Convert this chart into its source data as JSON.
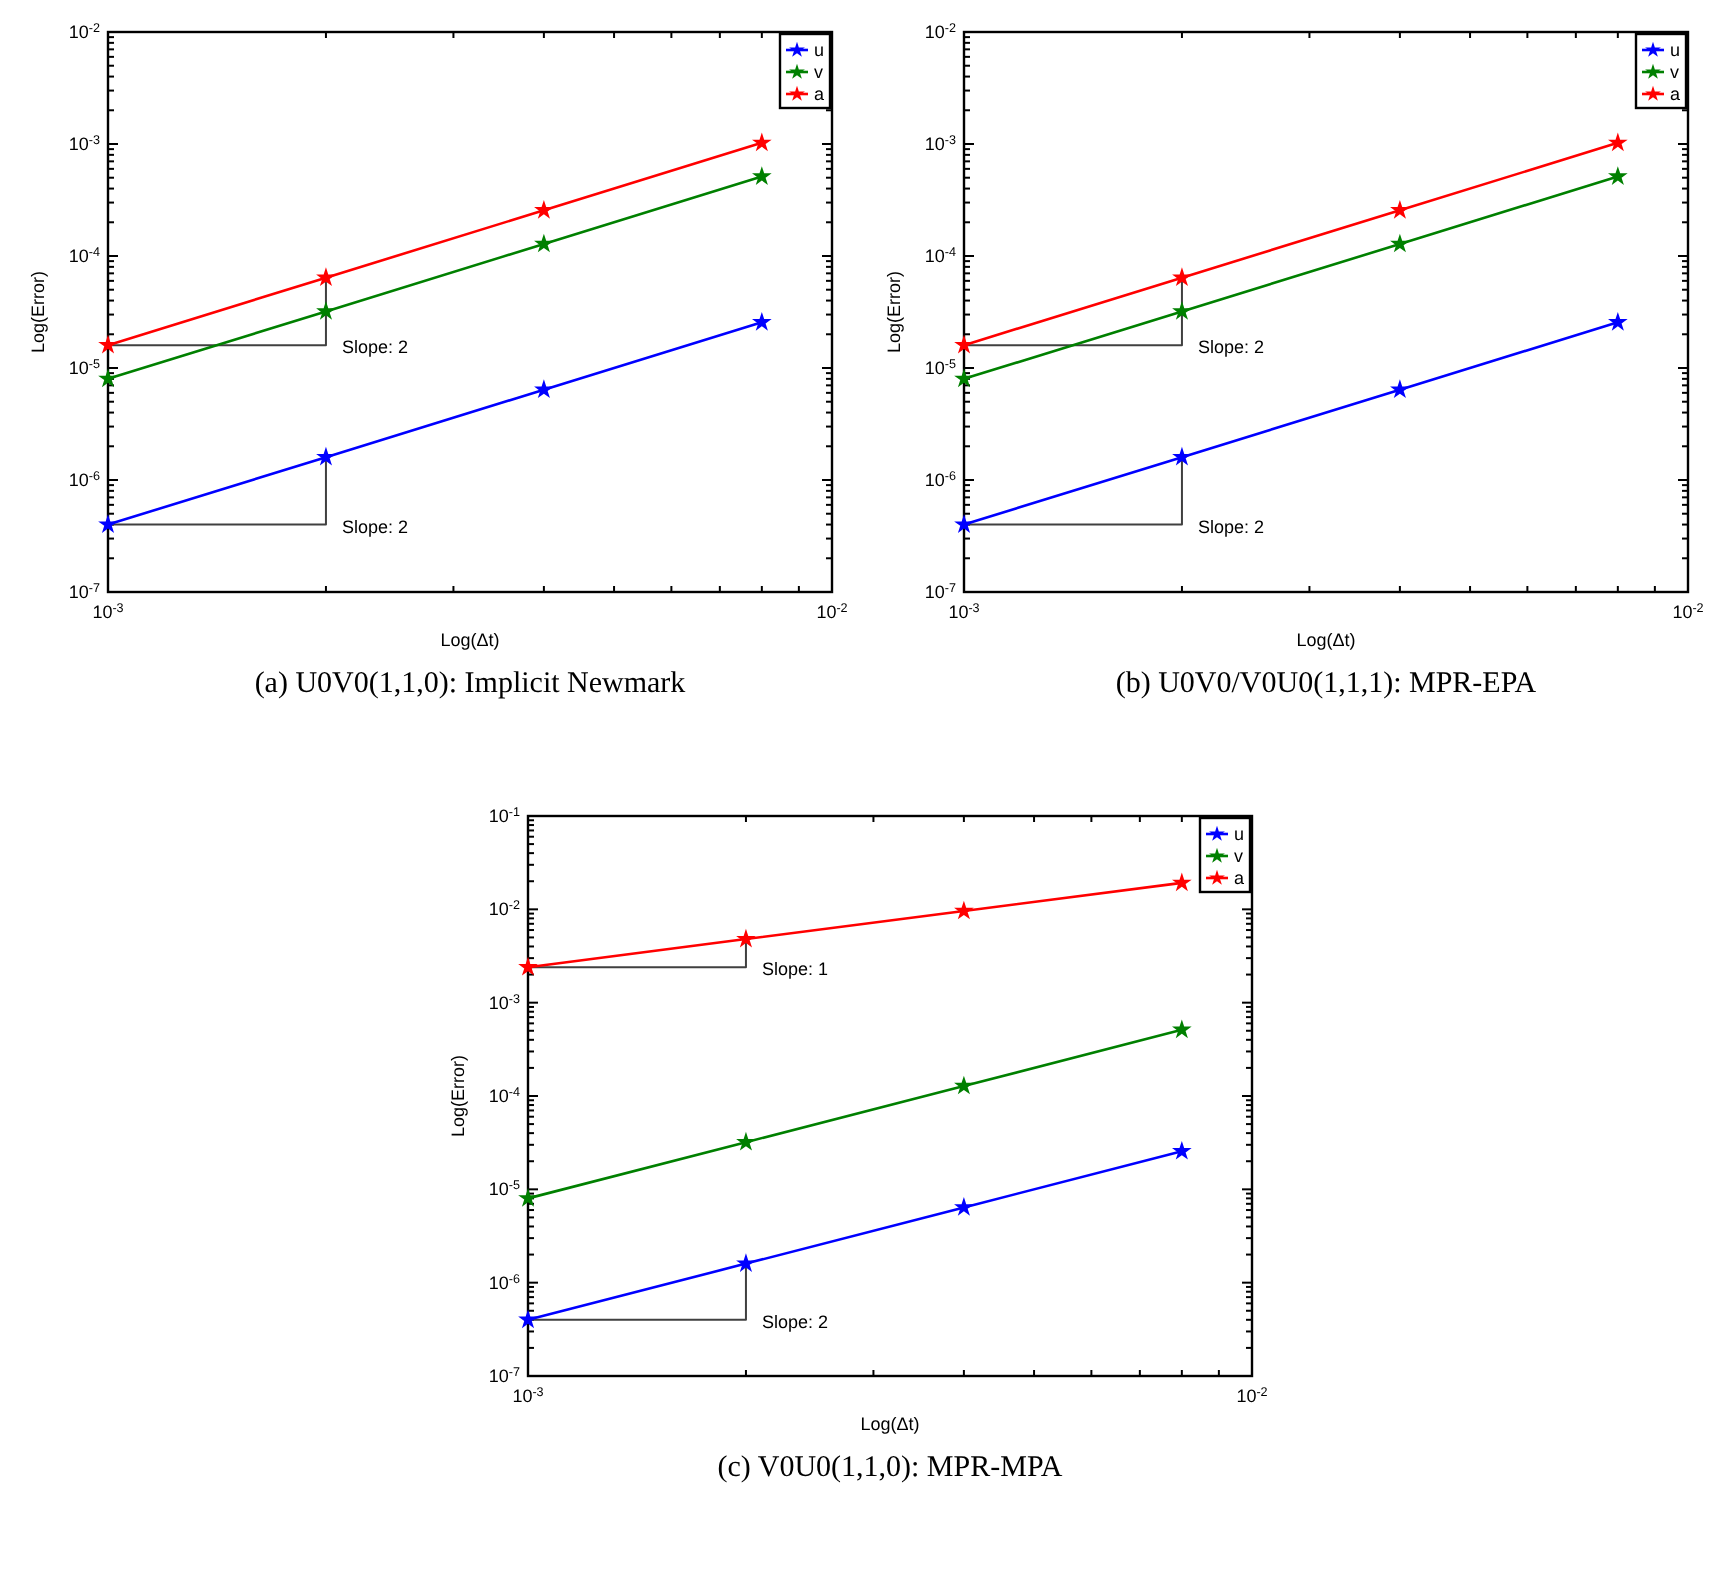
{
  "chart_data": [
    {
      "type": "line",
      "xlabel": "Log(Δt)",
      "ylabel": "Log(Error)",
      "log": "xy",
      "marker": "star",
      "legend": "top right",
      "x": [
        0.001,
        0.002,
        0.004,
        0.008
      ],
      "series": [
        {
          "name": "u",
          "color": "#0000ff",
          "values": [
            4e-07,
            1.6e-06,
            6.4e-06,
            2.56e-05
          ]
        },
        {
          "name": "v",
          "color": "#008000",
          "values": [
            8e-06,
            3.2e-05,
            0.000128,
            0.000512
          ]
        },
        {
          "name": "a",
          "color": "#ff0000",
          "values": [
            1.6e-05,
            6.4e-05,
            0.000256,
            0.001024
          ]
        },
        {
          "type": "step",
          "color": "#404040",
          "values": [
            1.6e-05,
            6.4e-05,
            null,
            null
          ],
          "marker": "none"
        },
        {
          "type": "step",
          "color": "#404040",
          "values": [
            4e-07,
            1.6e-06,
            null,
            null
          ],
          "marker": "none"
        }
      ],
      "xlim": [
        0.001,
        0.01
      ],
      "xticks": [
        {
          "value": 0.001,
          "label": "10$^{-3}$"
        },
        {
          "value": 0.002,
          "label": null
        },
        {
          "value": 0.003,
          "label": null
        },
        {
          "value": 0.004,
          "label": null
        },
        {
          "value": 0.005,
          "label": null
        },
        {
          "value": 0.006,
          "label": null
        },
        {
          "value": 0.007,
          "label": null
        },
        {
          "value": 0.008,
          "label": null
        },
        {
          "value": 0.009,
          "label": null
        },
        {
          "value": 0.01,
          "label": "10$^{-2}$"
        }
      ],
      "ylim": [
        1e-07,
        0.01
      ],
      "yticks": [
        {
          "value": 1e-07,
          "label": "10$^{-7}$"
        },
        {
          "value": 2e-07,
          "label": null
        },
        {
          "value": 3e-07,
          "label": null
        },
        {
          "value": 4e-07,
          "label": null
        },
        {
          "value": 5e-07,
          "label": null
        },
        {
          "value": 6e-07,
          "label": null
        },
        {
          "value": 7e-07,
          "label": null
        },
        {
          "value": 8e-07,
          "label": null
        },
        {
          "value": 9e-07,
          "label": null
        },
        {
          "value": 1e-06,
          "label": "10$^{-6}$"
        },
        {
          "value": 2e-06,
          "label": null
        },
        {
          "value": 3e-06,
          "label": null
        },
        {
          "value": 4e-06,
          "label": null
        },
        {
          "value": 5e-06,
          "label": null
        },
        {
          "value": 6e-06,
          "label": null
        },
        {
          "value": 7e-06,
          "label": null
        },
        {
          "value": 8e-06,
          "label": null
        },
        {
          "value": 9e-06,
          "label": null
        },
        {
          "value": 1e-05,
          "label": "10$^{-5}$"
        },
        {
          "value": 2e-05,
          "label": null
        },
        {
          "value": 3e-05,
          "label": null
        },
        {
          "value": 4e-05,
          "label": null
        },
        {
          "value": 5e-05,
          "label": null
        },
        {
          "value": 6e-05,
          "label": null
        },
        {
          "value": 7e-05,
          "label": null
        },
        {
          "value": 8e-05,
          "label": null
        },
        {
          "value": 9e-05,
          "label": null
        },
        {
          "value": 0.0001,
          "label": "10$^{-4}$"
        },
        {
          "value": 0.0002,
          "label": null
        },
        {
          "value": 0.0003,
          "label": null
        },
        {
          "value": 0.0004,
          "label": null
        },
        {
          "value": 0.0005,
          "label": null
        },
        {
          "value": 0.0006,
          "label": null
        },
        {
          "value": 0.0007,
          "label": null
        },
        {
          "value": 0.0008,
          "label": null
        },
        {
          "value": 0.0009,
          "label": null
        },
        {
          "value": 0.001,
          "label": "10$^{-3}$"
        },
        {
          "value": 0.002,
          "label": null
        },
        {
          "value": 0.003,
          "label": null
        },
        {
          "value": 0.004,
          "label": null
        },
        {
          "value": 0.005,
          "label": null
        },
        {
          "value": 0.006,
          "label": null
        },
        {
          "value": 0.007,
          "label": null
        },
        {
          "value": 0.008,
          "label": null
        },
        {
          "value": 0.009,
          "label": null
        },
        {
          "value": 0.01,
          "label": "10$^{-2}$"
        }
      ],
      "annotations": [
        "Slope: 2",
        "Slope: 2",
        "(a) U0V0(1,1,0): Implicit Newmark"
      ]
    },
    {
      "type": "line",
      "xlabel": "Log(Δt)",
      "ylabel": "Log(Error)",
      "log": "xy",
      "marker": "star",
      "legend": "top right",
      "x": [
        0.001,
        0.002,
        0.004,
        0.008
      ],
      "series": [
        {
          "name": "u",
          "color": "#0000ff",
          "values": [
            4e-07,
            1.6e-06,
            6.4e-06,
            2.56e-05
          ]
        },
        {
          "name": "v",
          "color": "#008000",
          "values": [
            8e-06,
            3.2e-05,
            0.000128,
            0.000512
          ]
        },
        {
          "name": "a",
          "color": "#ff0000",
          "values": [
            1.6e-05,
            6.4e-05,
            0.000256,
            0.001024
          ]
        },
        {
          "type": "step",
          "color": "#404040",
          "values": [
            1.6e-05,
            6.4e-05,
            null,
            null
          ],
          "marker": "none"
        },
        {
          "type": "step",
          "color": "#404040",
          "values": [
            4e-07,
            1.6e-06,
            null,
            null
          ],
          "marker": "none"
        }
      ],
      "xlim": [
        0.001,
        0.01
      ],
      "xticks": [
        {
          "value": 0.001,
          "label": "10$^{-3}$"
        },
        {
          "value": 0.002,
          "label": null
        },
        {
          "value": 0.003,
          "label": null
        },
        {
          "value": 0.004,
          "label": null
        },
        {
          "value": 0.005,
          "label": null
        },
        {
          "value": 0.006,
          "label": null
        },
        {
          "value": 0.007,
          "label": null
        },
        {
          "value": 0.008,
          "label": null
        },
        {
          "value": 0.009,
          "label": null
        },
        {
          "value": 0.01,
          "label": "10$^{-2}$"
        }
      ],
      "ylim": [
        1e-07,
        0.01
      ],
      "yticks": [
        {
          "value": 1e-07,
          "label": "10$^{-7}$"
        },
        {
          "value": 2e-07,
          "label": null
        },
        {
          "value": 3e-07,
          "label": null
        },
        {
          "value": 4e-07,
          "label": null
        },
        {
          "value": 5e-07,
          "label": null
        },
        {
          "value": 6e-07,
          "label": null
        },
        {
          "value": 7e-07,
          "label": null
        },
        {
          "value": 8e-07,
          "label": null
        },
        {
          "value": 9e-07,
          "label": null
        },
        {
          "value": 1e-06,
          "label": "10$^{-6}$"
        },
        {
          "value": 2e-06,
          "label": null
        },
        {
          "value": 3e-06,
          "label": null
        },
        {
          "value": 4e-06,
          "label": null
        },
        {
          "value": 5e-06,
          "label": null
        },
        {
          "value": 6e-06,
          "label": null
        },
        {
          "value": 7e-06,
          "label": null
        },
        {
          "value": 8e-06,
          "label": null
        },
        {
          "value": 9e-06,
          "label": null
        },
        {
          "value": 1e-05,
          "label": "10$^{-5}$"
        },
        {
          "value": 2e-05,
          "label": null
        },
        {
          "value": 3e-05,
          "label": null
        },
        {
          "value": 4e-05,
          "label": null
        },
        {
          "value": 5e-05,
          "label": null
        },
        {
          "value": 6e-05,
          "label": null
        },
        {
          "value": 7e-05,
          "label": null
        },
        {
          "value": 8e-05,
          "label": null
        },
        {
          "value": 9e-05,
          "label": null
        },
        {
          "value": 0.0001,
          "label": "10$^{-4}$"
        },
        {
          "value": 0.0002,
          "label": null
        },
        {
          "value": 0.0003,
          "label": null
        },
        {
          "value": 0.0004,
          "label": null
        },
        {
          "value": 0.0005,
          "label": null
        },
        {
          "value": 0.0006,
          "label": null
        },
        {
          "value": 0.0007,
          "label": null
        },
        {
          "value": 0.0008,
          "label": null
        },
        {
          "value": 0.0009,
          "label": null
        },
        {
          "value": 0.001,
          "label": "10$^{-3}$"
        },
        {
          "value": 0.002,
          "label": null
        },
        {
          "value": 0.003,
          "label": null
        },
        {
          "value": 0.004,
          "label": null
        },
        {
          "value": 0.005,
          "label": null
        },
        {
          "value": 0.006,
          "label": null
        },
        {
          "value": 0.007,
          "label": null
        },
        {
          "value": 0.008,
          "label": null
        },
        {
          "value": 0.009,
          "label": null
        },
        {
          "value": 0.01,
          "label": "10$^{-2}$"
        }
      ],
      "annotations": [
        "Slope: 2",
        "Slope: 2",
        "(b) U0V0/V0U0(1,1,1): MPR-EPA"
      ]
    },
    {
      "type": "line",
      "xlabel": "Log(Δt)",
      "ylabel": "Log(Error)",
      "log": "xy",
      "marker": "star",
      "legend": "top right",
      "x": [
        0.001,
        0.002,
        0.004,
        0.008
      ],
      "series": [
        {
          "name": "u",
          "color": "#0000ff",
          "values": [
            4e-07,
            1.6e-06,
            6.4e-06,
            2.56e-05
          ]
        },
        {
          "name": "v",
          "color": "#008000",
          "values": [
            8e-06,
            3.2e-05,
            0.000128,
            0.000512
          ]
        },
        {
          "name": "a",
          "color": "#ff0000",
          "values": [
            0.0024,
            0.0048,
            0.0096,
            0.0192
          ]
        },
        {
          "type": "step",
          "color": "#404040",
          "values": [
            0.0024,
            0.0048,
            null,
            null
          ],
          "marker": "none"
        },
        {
          "type": "step",
          "color": "#404040",
          "values": [
            4e-07,
            1.6e-06,
            null,
            null
          ],
          "marker": "none"
        }
      ],
      "xlim": [
        0.001,
        0.01
      ],
      "xticks": [
        {
          "value": 0.001,
          "label": "10$^{-3}$"
        },
        {
          "value": 0.002,
          "label": null
        },
        {
          "value": 0.003,
          "label": null
        },
        {
          "value": 0.004,
          "label": null
        },
        {
          "value": 0.005,
          "label": null
        },
        {
          "value": 0.006,
          "label": null
        },
        {
          "value": 0.007,
          "label": null
        },
        {
          "value": 0.008,
          "label": null
        },
        {
          "value": 0.009,
          "label": null
        },
        {
          "value": 0.01,
          "label": "10$^{-2}$"
        }
      ],
      "ylim": [
        1e-07,
        0.1
      ],
      "yticks": [
        {
          "value": 1e-07,
          "label": "10$^{-7}$"
        },
        {
          "value": 2e-07,
          "label": null
        },
        {
          "value": 3e-07,
          "label": null
        },
        {
          "value": 4e-07,
          "label": null
        },
        {
          "value": 5e-07,
          "label": null
        },
        {
          "value": 6e-07,
          "label": null
        },
        {
          "value": 7e-07,
          "label": null
        },
        {
          "value": 8e-07,
          "label": null
        },
        {
          "value": 9e-07,
          "label": null
        },
        {
          "value": 1e-06,
          "label": "10$^{-6}$"
        },
        {
          "value": 2e-06,
          "label": null
        },
        {
          "value": 3e-06,
          "label": null
        },
        {
          "value": 4e-06,
          "label": null
        },
        {
          "value": 5e-06,
          "label": null
        },
        {
          "value": 6e-06,
          "label": null
        },
        {
          "value": 7e-06,
          "label": null
        },
        {
          "value": 8e-06,
          "label": null
        },
        {
          "value": 9e-06,
          "label": null
        },
        {
          "value": 1e-05,
          "label": "10$^{-5}$"
        },
        {
          "value": 2e-05,
          "label": null
        },
        {
          "value": 3e-05,
          "label": null
        },
        {
          "value": 4e-05,
          "label": null
        },
        {
          "value": 5e-05,
          "label": null
        },
        {
          "value": 6e-05,
          "label": null
        },
        {
          "value": 7e-05,
          "label": null
        },
        {
          "value": 8e-05,
          "label": null
        },
        {
          "value": 9e-05,
          "label": null
        },
        {
          "value": 0.0001,
          "label": "10$^{-4}$"
        },
        {
          "value": 0.0002,
          "label": null
        },
        {
          "value": 0.0003,
          "label": null
        },
        {
          "value": 0.0004,
          "label": null
        },
        {
          "value": 0.0005,
          "label": null
        },
        {
          "value": 0.0006,
          "label": null
        },
        {
          "value": 0.0007,
          "label": null
        },
        {
          "value": 0.0008,
          "label": null
        },
        {
          "value": 0.0009,
          "label": null
        },
        {
          "value": 0.001,
          "label": "10$^{-3}$"
        },
        {
          "value": 0.002,
          "label": null
        },
        {
          "value": 0.003,
          "label": null
        },
        {
          "value": 0.004,
          "label": null
        },
        {
          "value": 0.005,
          "label": null
        },
        {
          "value": 0.006,
          "label": null
        },
        {
          "value": 0.007,
          "label": null
        },
        {
          "value": 0.008,
          "label": null
        },
        {
          "value": 0.009,
          "label": null
        },
        {
          "value": 0.01,
          "label": "10$^{-2}$"
        },
        {
          "value": 0.02,
          "label": null
        },
        {
          "value": 0.03,
          "label": null
        },
        {
          "value": 0.04,
          "label": null
        },
        {
          "value": 0.05,
          "label": null
        },
        {
          "value": 0.06,
          "label": null
        },
        {
          "value": 0.07,
          "label": null
        },
        {
          "value": 0.08,
          "label": null
        },
        {
          "value": 0.09,
          "label": null
        },
        {
          "value": 0.1,
          "label": "10$^{-1}$"
        }
      ],
      "annotations": [
        "Slope: 1",
        "Slope: 2",
        "(c) V0U0(1,1,0): MPR-MPA"
      ]
    }
  ]
}
